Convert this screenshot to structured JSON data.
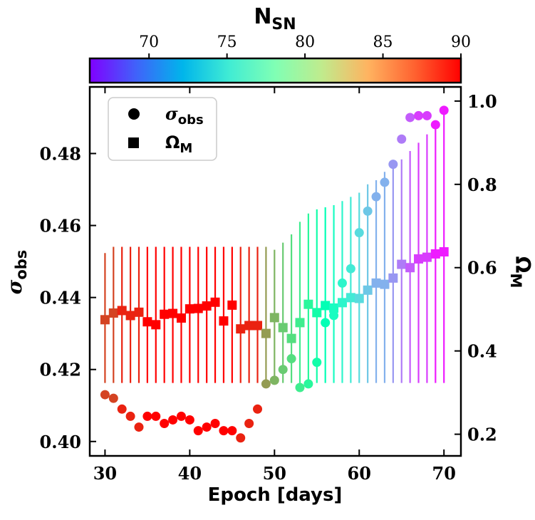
{
  "chart_data": {
    "type": "scatter",
    "xlabel": "Epoch [days]",
    "ylabel_left_main": "σ",
    "ylabel_left_sub": "obs",
    "ylabel_right_main": "Ω",
    "ylabel_right_sub": "M",
    "colorbar_label_main": "N",
    "colorbar_label_sub": "SN",
    "xlim": [
      28.2,
      72.0
    ],
    "ylim_left": [
      0.396,
      0.4985
    ],
    "ylim_right": [
      0.148,
      1.034
    ],
    "colorbar_range": [
      66.2,
      90.0
    ],
    "x_ticks": [
      30,
      40,
      50,
      60,
      70
    ],
    "y_left_ticks": [
      0.4,
      0.42,
      0.44,
      0.46,
      0.48
    ],
    "y_right_ticks": [
      0.2,
      0.4,
      0.6,
      0.8,
      1.0
    ],
    "colorbar_ticks": [
      70,
      75,
      80,
      85,
      90
    ],
    "legend": [
      {
        "marker": "circle",
        "label_main": "σ",
        "label_sub": "obs"
      },
      {
        "marker": "square",
        "label_main": "Ω",
        "label_sub": "M"
      }
    ],
    "legend_position": "top-left",
    "epochs": [
      30,
      31,
      32,
      33,
      34,
      35,
      36,
      37,
      38,
      39,
      40,
      41,
      42,
      43,
      44,
      45,
      46,
      47,
      48,
      49,
      50,
      51,
      52,
      53,
      54,
      55,
      56,
      57,
      58,
      59,
      60,
      61,
      62,
      63,
      64,
      65,
      66,
      67,
      68,
      69,
      70
    ],
    "n_sn": [
      88,
      88,
      89,
      89,
      89,
      90,
      90,
      90,
      90,
      90,
      90,
      90,
      90,
      90,
      90,
      90,
      89,
      89,
      89,
      85,
      84,
      83,
      82,
      81,
      80,
      79,
      78,
      77,
      76,
      75,
      74,
      73,
      72,
      72,
      71,
      70,
      69,
      68,
      68,
      67,
      67
    ],
    "sigma_obs": [
      0.413,
      0.412,
      0.409,
      0.407,
      0.404,
      0.407,
      0.407,
      0.405,
      0.406,
      0.407,
      0.406,
      0.403,
      0.404,
      0.405,
      0.403,
      0.403,
      0.401,
      0.405,
      0.409,
      0.416,
      0.417,
      0.42,
      0.423,
      0.415,
      0.416,
      0.422,
      0.433,
      0.435,
      0.444,
      0.448,
      0.458,
      0.464,
      0.468,
      0.472,
      0.477,
      0.484,
      0.49,
      0.4905,
      0.4905,
      0.488,
      0.492
    ],
    "omega_m": [
      0.475,
      0.491,
      0.497,
      0.485,
      0.493,
      0.47,
      0.463,
      0.488,
      0.49,
      0.479,
      0.501,
      0.502,
      0.508,
      0.517,
      0.472,
      0.51,
      0.453,
      0.461,
      0.461,
      0.442,
      0.48,
      0.456,
      0.43,
      0.468,
      0.512,
      0.492,
      0.509,
      0.503,
      0.516,
      0.528,
      0.526,
      0.546,
      0.563,
      0.56,
      0.575,
      0.608,
      0.6,
      0.621,
      0.625,
      0.633,
      0.638
    ],
    "omega_m_errors": [
      [
        0.323,
        0.635
      ],
      [
        0.323,
        0.65
      ],
      [
        0.323,
        0.65
      ],
      [
        0.323,
        0.65
      ],
      [
        0.323,
        0.65
      ],
      [
        0.323,
        0.65
      ],
      [
        0.323,
        0.65
      ],
      [
        0.323,
        0.65
      ],
      [
        0.323,
        0.65
      ],
      [
        0.323,
        0.65
      ],
      [
        0.323,
        0.65
      ],
      [
        0.323,
        0.65
      ],
      [
        0.323,
        0.65
      ],
      [
        0.323,
        0.65
      ],
      [
        0.323,
        0.65
      ],
      [
        0.323,
        0.65
      ],
      [
        0.323,
        0.65
      ],
      [
        0.323,
        0.65
      ],
      [
        0.323,
        0.65
      ],
      [
        0.323,
        0.65
      ],
      [
        0.323,
        0.643
      ],
      [
        0.323,
        0.66
      ],
      [
        0.323,
        0.68
      ],
      [
        0.323,
        0.71
      ],
      [
        0.323,
        0.73
      ],
      [
        0.323,
        0.74
      ],
      [
        0.323,
        0.745
      ],
      [
        0.323,
        0.75
      ],
      [
        0.323,
        0.76
      ],
      [
        0.323,
        0.77
      ],
      [
        0.323,
        0.78
      ],
      [
        0.323,
        0.8
      ],
      [
        0.323,
        0.81
      ],
      [
        0.323,
        0.83
      ],
      [
        0.323,
        0.85
      ],
      [
        0.323,
        0.86
      ],
      [
        0.323,
        0.88
      ],
      [
        0.323,
        0.9
      ],
      [
        0.323,
        0.92
      ],
      [
        0.323,
        0.94
      ],
      [
        0.323,
        0.97
      ]
    ]
  }
}
